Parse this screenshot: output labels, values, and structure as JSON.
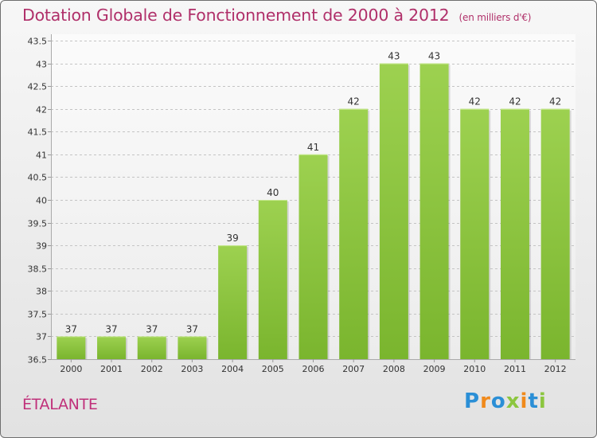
{
  "header": {
    "title": "Dotation Globale de Fonctionnement de 2000 à 2012",
    "subtitle": "(en milliers d'€)"
  },
  "commune": "ÉTALANTE",
  "logo": {
    "text": "Proxiti",
    "letters": [
      {
        "ch": "P",
        "color": "#2b8fd6"
      },
      {
        "ch": "r",
        "color": "#f08a1c"
      },
      {
        "ch": "o",
        "color": "#2b8fd6"
      },
      {
        "ch": "x",
        "color": "#8cc63f"
      },
      {
        "ch": "i",
        "color": "#f08a1c"
      },
      {
        "ch": "t",
        "color": "#2b8fd6"
      },
      {
        "ch": "i",
        "color": "#8cc63f"
      }
    ]
  },
  "chart_data": {
    "type": "bar",
    "title": "Dotation Globale de Fonctionnement de 2000 à 2012",
    "subtitle": "(en milliers d'€)",
    "categories": [
      "2000",
      "2001",
      "2002",
      "2003",
      "2004",
      "2005",
      "2006",
      "2007",
      "2008",
      "2009",
      "2010",
      "2011",
      "2012"
    ],
    "values": [
      37,
      37,
      37,
      37,
      39,
      40,
      41,
      42,
      43,
      43,
      42,
      42,
      42
    ],
    "labels": [
      "37",
      "37",
      "37",
      "37",
      "39",
      "40",
      "41",
      "42",
      "43",
      "43",
      "42",
      "42",
      "42"
    ],
    "ylim": [
      36.5,
      43.5
    ],
    "yticks": [
      "36.5",
      "37",
      "37.5",
      "38",
      "38.5",
      "39",
      "39.5",
      "40",
      "40.5",
      "41",
      "41.5",
      "42",
      "42.5",
      "43",
      "43.5"
    ],
    "grid": true,
    "bar_color": "#7ab52e",
    "bar_color_top": "#9dd150"
  }
}
